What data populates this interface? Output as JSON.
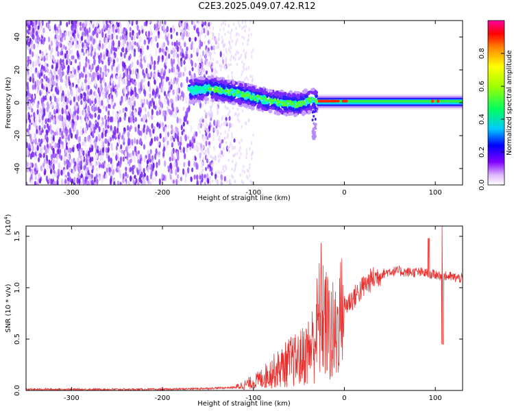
{
  "title": "C2E3.2025.049.07.42.R12",
  "chart_data": [
    {
      "type": "heatmap",
      "title": "C2E3.2025.049.07.42.R12",
      "xlabel": "Height of straight line (km)",
      "ylabel": "Frequency (Hz)",
      "xlim": [
        -350,
        130
      ],
      "ylim": [
        -50,
        50
      ],
      "x_ticks": [
        -300,
        -200,
        -100,
        0,
        100
      ],
      "y_ticks": [
        -40,
        -20,
        0,
        20,
        40
      ],
      "grid": false,
      "colorbar": {
        "label": "Normalized spectral amplitude",
        "range": [
          0,
          1
        ],
        "ticks": [
          0.0,
          0.2,
          0.4,
          0.6,
          0.8
        ],
        "colormap": [
          "#ff00ff",
          "#ff0000",
          "#ffff00",
          "#00ff00",
          "#00ffff",
          "#0000ff",
          "#8000ff",
          "#ffffff"
        ]
      },
      "description_regions": [
        {
          "x_range": [
            -350,
            -110
          ],
          "y_range": [
            -50,
            50
          ],
          "amplitude": 0.1
        },
        {
          "x_range": [
            -170,
            -30
          ],
          "y_range": [
            -10,
            15
          ],
          "amplitude": 0.3
        },
        {
          "x_range": [
            -30,
            130
          ],
          "y_range": [
            -1,
            3
          ],
          "amplitude": 0.45
        }
      ],
      "main_band": [
        {
          "x": -170,
          "f": 7
        },
        {
          "x": -150,
          "f": 9
        },
        {
          "x": -130,
          "f": 7
        },
        {
          "x": -110,
          "f": 5
        },
        {
          "x": -90,
          "f": 2
        },
        {
          "x": -70,
          "f": 0
        },
        {
          "x": -50,
          "f": -1
        },
        {
          "x": -35,
          "f": 2
        },
        {
          "x": -25,
          "f": 1
        },
        {
          "x": 0,
          "f": 1
        },
        {
          "x": 50,
          "f": 1
        },
        {
          "x": 100,
          "f": 1
        },
        {
          "x": 130,
          "f": 1
        }
      ]
    },
    {
      "type": "line",
      "xlabel": "Height of straight line (km)",
      "ylabel": "SNR (10 * v/v)",
      "y_multiplier": "(x10^4)",
      "xlim": [
        -350,
        130
      ],
      "ylim": [
        0,
        1.6
      ],
      "x_ticks": [
        -300,
        -200,
        -100,
        0,
        100
      ],
      "y_ticks": [
        0.0,
        0.5,
        1.0,
        1.5
      ],
      "grid": false,
      "series": [
        {
          "color": "#e8312f",
          "x": [
            -350,
            -300,
            -250,
            -200,
            -150,
            -120,
            -100,
            -90,
            -80,
            -70,
            -60,
            -50,
            -40,
            -35,
            -30,
            -25,
            -20,
            -15,
            -10,
            -5,
            0,
            10,
            20,
            30,
            40,
            50,
            60,
            70,
            80,
            90,
            95,
            100,
            105,
            108,
            110,
            115,
            120,
            130
          ],
          "y": [
            0.01,
            0.01,
            0.01,
            0.01,
            0.02,
            0.03,
            0.08,
            0.12,
            0.18,
            0.22,
            0.28,
            0.3,
            0.38,
            0.45,
            0.6,
            0.8,
            0.65,
            0.55,
            0.5,
            0.75,
            0.82,
            0.9,
            1.0,
            1.08,
            1.13,
            1.16,
            1.16,
            1.15,
            1.15,
            1.14,
            1.13,
            1.13,
            1.12,
            1.12,
            1.11,
            1.11,
            1.1,
            1.09
          ]
        }
      ]
    }
  ]
}
